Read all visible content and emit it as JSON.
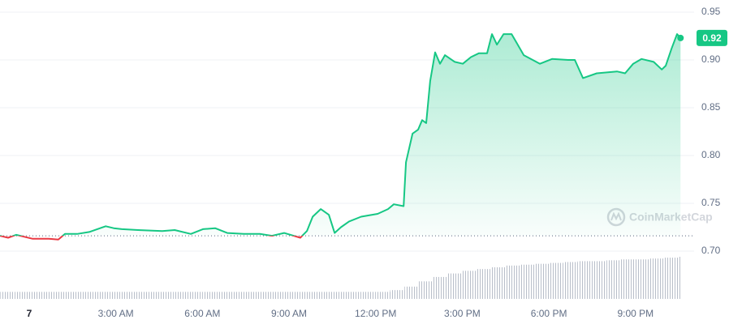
{
  "chart_data": {
    "type": "line",
    "x": [
      -1.01,
      -0.73,
      -0.45,
      0.11,
      0.68,
      1.01,
      1.24,
      1.66,
      2.08,
      2.65,
      2.93,
      3.21,
      3.77,
      4.61,
      5.04,
      5.6,
      6.02,
      6.44,
      6.86,
      7.43,
      7.99,
      8.41,
      8.83,
      9.39,
      9.62,
      9.82,
      10.1,
      10.38,
      10.58,
      10.8,
      11.08,
      11.5,
      12.07,
      12.43,
      12.63,
      12.97,
      13.05,
      13.28,
      13.47,
      13.61,
      13.75,
      13.89,
      14.06,
      14.23,
      14.4,
      14.74,
      15.02,
      15.3,
      15.58,
      15.86,
      16.03,
      16.2,
      16.43,
      16.71,
      17.13,
      17.69,
      18.11,
      18.67,
      18.9,
      19.18,
      19.66,
      20.36,
      20.64,
      20.92,
      21.21,
      21.63,
      21.91,
      22.05,
      22.25,
      22.44,
      22.56
    ],
    "values": [
      0.716,
      0.714,
      0.717,
      0.713,
      0.713,
      0.712,
      0.718,
      0.718,
      0.72,
      0.726,
      0.724,
      0.723,
      0.722,
      0.721,
      0.722,
      0.718,
      0.723,
      0.724,
      0.719,
      0.718,
      0.718,
      0.716,
      0.719,
      0.714,
      0.721,
      0.736,
      0.744,
      0.738,
      0.719,
      0.725,
      0.731,
      0.736,
      0.739,
      0.744,
      0.749,
      0.747,
      0.793,
      0.823,
      0.827,
      0.837,
      0.834,
      0.878,
      0.908,
      0.896,
      0.905,
      0.898,
      0.896,
      0.903,
      0.907,
      0.907,
      0.927,
      0.916,
      0.927,
      0.927,
      0.905,
      0.896,
      0.901,
      0.9,
      0.9,
      0.881,
      0.886,
      0.888,
      0.886,
      0.896,
      0.901,
      0.898,
      0.89,
      0.894,
      0.912,
      0.927,
      0.923
    ],
    "current_price_label": "0.92",
    "baseline": 0.716,
    "colors": {
      "above": "#16c784",
      "below": "#ea3943",
      "volume": "#b8bec9"
    },
    "volume": {
      "x": [
        -1,
        -0.5,
        0,
        0.5,
        1,
        1.5,
        2,
        2.5,
        3,
        3.5,
        4,
        4.5,
        5,
        5.5,
        6,
        6.5,
        7,
        7.5,
        8,
        8.5,
        9,
        9.5,
        10,
        10.5,
        11,
        11.5,
        12,
        12.5,
        13,
        13.5,
        14,
        14.5,
        15,
        15.5,
        16,
        16.5,
        17,
        17.5,
        18,
        18.5,
        19,
        19.5,
        20,
        20.5,
        21,
        21.5,
        22,
        22.5
      ],
      "values": [
        8,
        8,
        8,
        8,
        8,
        8,
        8,
        8,
        8,
        8,
        8,
        8,
        8,
        8,
        8,
        8,
        8,
        8,
        8,
        8,
        8,
        8,
        8,
        8,
        8,
        8,
        8,
        10,
        14,
        20,
        25,
        29,
        32,
        34,
        36,
        38,
        39,
        40,
        41,
        42,
        43,
        43,
        44,
        45,
        45,
        46,
        47,
        48
      ]
    },
    "watermark": "CoinMarketCap",
    "xlim": [
      -1.01,
      23.03
    ],
    "xticks": [
      {
        "value": 0,
        "label": "7"
      },
      {
        "value": 3,
        "label": "3:00 AM"
      },
      {
        "value": 6,
        "label": "6:00 AM"
      },
      {
        "value": 9,
        "label": "9:00 AM"
      },
      {
        "value": 12,
        "label": "12:00 PM"
      },
      {
        "value": 15,
        "label": "3:00 PM"
      },
      {
        "value": 18,
        "label": "6:00 PM"
      },
      {
        "value": 21,
        "label": "9:00 PM"
      }
    ],
    "ylim": [
      0.65,
      0.96
    ],
    "yticks": [
      {
        "value": 0.7,
        "label": "0.70"
      },
      0.75,
      {
        "value": 0.8,
        "label": "0.80"
      },
      0.85,
      {
        "value": 0.9,
        "label": "0.90"
      },
      0.95
    ],
    "grid": true
  }
}
